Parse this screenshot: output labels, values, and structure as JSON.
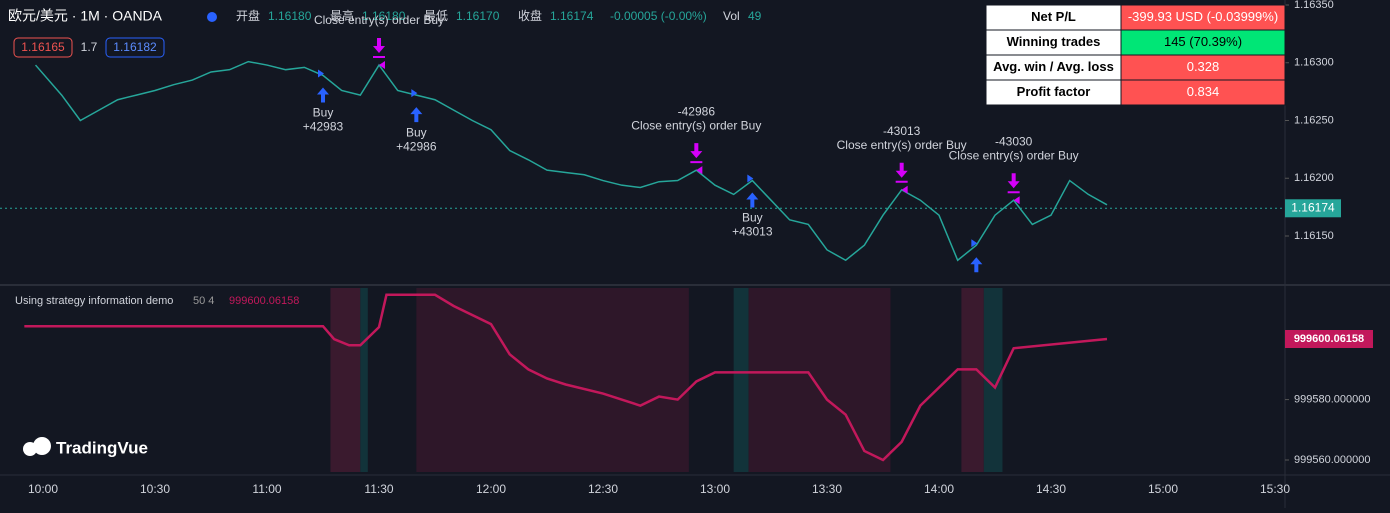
{
  "toolbar": {
    "symbol": "欧元/美元 · 1M · OANDA",
    "fields": [
      {
        "label": "开盘",
        "value": "1.16180"
      },
      {
        "label": "最高",
        "value": "1.16180"
      },
      {
        "label": "最低",
        "value": "1.16170"
      },
      {
        "label": "收盘",
        "value": "1.16174"
      }
    ],
    "change": "-0.00005 (-0.00%)",
    "vol_label": "Vol",
    "vol": "49",
    "bid": "1.16165",
    "spread": "1.7",
    "ask": "1.16182"
  },
  "stats_table": {
    "rows": [
      [
        "Net P/L",
        "-399.93 USD (-0.03999%)"
      ],
      [
        "Winning trades",
        "145 (70.39%)"
      ],
      [
        "Avg. win / Avg. loss",
        "0.328"
      ],
      [
        "Profit factor",
        "0.834"
      ]
    ]
  },
  "chart_data": [
    {
      "type": "line",
      "title": "欧元/美元 · 1M · OANDA",
      "x": [
        "09:58",
        "10:05",
        "10:10",
        "10:15",
        "10:20",
        "10:25",
        "10:30",
        "10:35",
        "10:40",
        "10:45",
        "10:50",
        "10:55",
        "11:00",
        "11:05",
        "11:10",
        "11:15",
        "11:20",
        "11:25",
        "11:30",
        "11:35",
        "11:40",
        "11:45",
        "11:50",
        "11:55",
        "12:00",
        "12:05",
        "12:10",
        "12:15",
        "12:20",
        "12:25",
        "12:30",
        "12:35",
        "12:40",
        "12:45",
        "12:50",
        "12:55",
        "13:00",
        "13:05",
        "13:10",
        "13:15",
        "13:20",
        "13:25",
        "13:30",
        "13:35",
        "13:40",
        "13:45",
        "13:50",
        "13:55",
        "14:00",
        "14:05",
        "14:10",
        "14:15",
        "14:20",
        "14:25",
        "14:30",
        "14:35",
        "14:40",
        "14:45"
      ],
      "series": [
        {
          "name": "欧元/美元",
          "color": "#26a69a",
          "values": [
            1.16298,
            1.16272,
            1.1625,
            1.16259,
            1.16268,
            1.16272,
            1.16276,
            1.16281,
            1.16285,
            1.16292,
            1.16294,
            1.16301,
            1.16298,
            1.16294,
            1.16296,
            1.16289,
            1.16276,
            1.16272,
            1.16298,
            1.16276,
            1.16272,
            1.16268,
            1.16259,
            1.1625,
            1.16242,
            1.16224,
            1.16216,
            1.16207,
            1.16205,
            1.16203,
            1.16198,
            1.16194,
            1.16192,
            1.16197,
            1.16198,
            1.16207,
            1.16194,
            1.16186,
            1.16198,
            1.16181,
            1.16164,
            1.1616,
            1.16138,
            1.16129,
            1.16142,
            1.16168,
            1.1619,
            1.16181,
            1.16168,
            1.16129,
            1.16142,
            1.16168,
            1.16181,
            1.1616,
            1.16168,
            1.16198,
            1.16186,
            1.16177
          ]
        }
      ],
      "ylim": [
        1.16115,
        1.16355
      ],
      "yticks": [
        {
          "value": 1.1635,
          "label": "1.16350"
        },
        {
          "value": 1.163,
          "label": "1.16300"
        },
        {
          "value": 1.1625,
          "label": "1.16250"
        },
        {
          "value": 1.162,
          "label": "1.16200"
        },
        {
          "value": 1.1615,
          "label": "1.16150"
        }
      ],
      "last_price": {
        "value": 1.16174,
        "label": "1.16174"
      },
      "trades": [
        {
          "time": "11:15",
          "side": "buy",
          "lines": [
            "Buy",
            "+42983"
          ]
        },
        {
          "time": "11:30",
          "side": "close",
          "lines": [
            "Close entry(s) order Buy"
          ]
        },
        {
          "time": "11:40",
          "side": "buy",
          "lines": [
            "Buy",
            "+42986"
          ]
        },
        {
          "time": "12:55",
          "side": "close",
          "lines": [
            "-42986",
            "Close entry(s) order Buy"
          ]
        },
        {
          "time": "13:10",
          "side": "buy",
          "lines": [
            "Buy",
            "+43013"
          ]
        },
        {
          "time": "13:50",
          "side": "close",
          "lines": [
            "-43013",
            "Close entry(s) order Buy"
          ]
        },
        {
          "time": "14:10",
          "side": "buy",
          "lines": []
        },
        {
          "time": "14:20",
          "side": "close",
          "lines": [
            "-43030",
            "Close entry(s) order Buy"
          ]
        }
      ]
    },
    {
      "type": "line",
      "title": "Using strategy information demo",
      "params": "50 4",
      "x": [
        "09:55",
        "11:15",
        "11:18",
        "11:22",
        "11:25",
        "11:30",
        "11:32",
        "11:45",
        "11:50",
        "12:00",
        "12:05",
        "12:10",
        "12:15",
        "12:20",
        "12:30",
        "12:40",
        "12:45",
        "12:50",
        "12:55",
        "13:00",
        "13:25",
        "13:30",
        "13:35",
        "13:40",
        "13:45",
        "13:50",
        "13:55",
        "14:05",
        "14:10",
        "14:15",
        "14:20",
        "14:45"
      ],
      "series": [
        {
          "name": "999600.06158",
          "color": "#c2185b",
          "values": [
            999604.3,
            999604.3,
            999600,
            999598,
            999598,
            999604,
            999614.7,
            999614.7,
            999611,
            999605,
            999595,
            999590,
            999587,
            999585,
            999582,
            999578,
            999581,
            999580,
            999586,
            999589,
            999589,
            999580,
            999575,
            999563,
            999560,
            999566,
            999578,
            999590,
            999590,
            999584,
            999597,
            999600.06158
          ]
        }
      ],
      "ylim": [
        999555,
        999620
      ],
      "yticks": [
        {
          "value": 999600.06158,
          "label": "999600.06158"
        },
        {
          "value": 999580,
          "label": "999580.000000"
        },
        {
          "value": 999560,
          "label": "999560.000000"
        }
      ],
      "zones": [
        {
          "start": "11:17",
          "end": "11:25",
          "color": "#3a1a2e"
        },
        {
          "start": "11:25",
          "end": "11:27",
          "color": "#12333a"
        },
        {
          "start": "11:40",
          "end": "12:53",
          "color": "#2e1729"
        },
        {
          "start": "13:05",
          "end": "13:09",
          "color": "#12333a"
        },
        {
          "start": "13:09",
          "end": "13:47",
          "color": "#2e1729"
        },
        {
          "start": "14:06",
          "end": "14:12",
          "color": "#3a1a2e"
        },
        {
          "start": "14:12",
          "end": "14:17",
          "color": "#12333a"
        }
      ]
    }
  ],
  "time_axis": {
    "ticks": [
      "10:00",
      "10:30",
      "11:00",
      "11:30",
      "12:00",
      "12:30",
      "13:00",
      "13:30",
      "14:00",
      "14:30",
      "15:00",
      "15:30"
    ]
  },
  "logo": "TradingVue"
}
